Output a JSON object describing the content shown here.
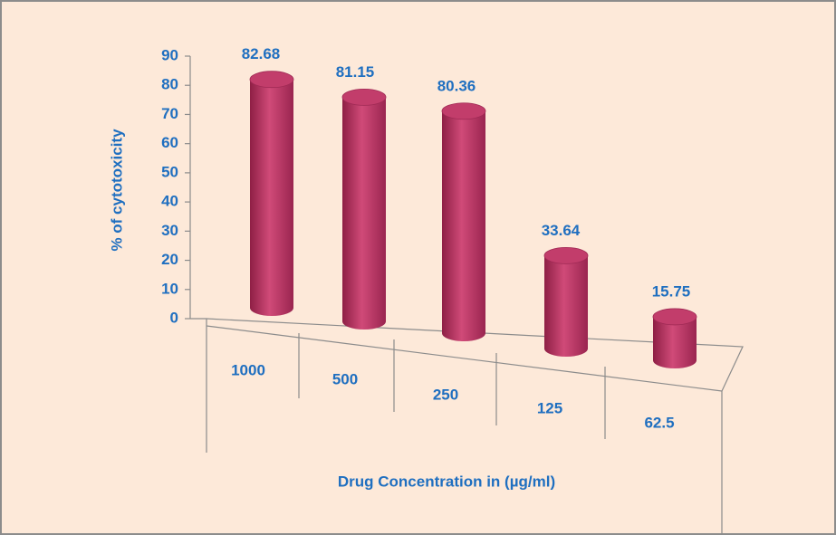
{
  "chart_data": {
    "type": "bar3d",
    "x_label": "Drug Concentration in (µg/ml)",
    "y_label": "% of cytotoxicity",
    "categories": [
      "1000",
      "500",
      "250",
      "125",
      "62.5"
    ],
    "values": [
      82.68,
      81.15,
      80.36,
      33.64,
      15.75
    ],
    "color": "#b8305e",
    "ylim": [
      0,
      90
    ],
    "yticks": [
      0,
      10,
      20,
      30,
      40,
      50,
      60,
      70,
      80,
      90
    ]
  }
}
